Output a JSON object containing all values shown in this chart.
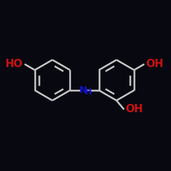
{
  "background_color": "#080810",
  "bond_color": "#c8c8c8",
  "bond_width": 1.8,
  "oh_color": "#cc1111",
  "nh_color": "#1111cc",
  "font_size_oh": 11,
  "font_size_nh": 10,
  "figsize": [
    2.5,
    2.5
  ],
  "dpi": 100,
  "xlim": [
    -4.0,
    4.0
  ],
  "ylim": [
    -2.5,
    2.5
  ]
}
